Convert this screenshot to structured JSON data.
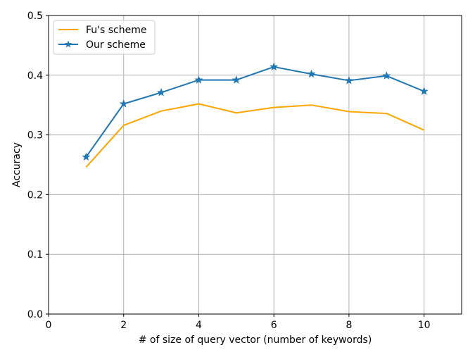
{
  "chart_data": {
    "type": "line",
    "xlabel": "# of size of query vector (number of keywords)",
    "ylabel": "Accuracy",
    "xlim": [
      0,
      11
    ],
    "ylim": [
      0,
      0.5
    ],
    "xticks": [
      0,
      2,
      4,
      6,
      8,
      10
    ],
    "yticks": [
      0.0,
      0.1,
      0.2,
      0.3,
      0.4,
      0.5
    ],
    "xtick_labels": [
      "0",
      "2",
      "4",
      "6",
      "8",
      "10"
    ],
    "ytick_labels": [
      "0.0",
      "0.1",
      "0.2",
      "0.3",
      "0.4",
      "0.5"
    ],
    "grid": true,
    "legend_position": "top-left",
    "x": [
      1,
      2,
      3,
      4,
      5,
      6,
      7,
      8,
      9,
      10
    ],
    "series": [
      {
        "name": "Fu's scheme",
        "color": "#ffa500",
        "marker": "none",
        "values": [
          0.246,
          0.316,
          0.34,
          0.352,
          0.337,
          0.346,
          0.35,
          0.339,
          0.336,
          0.308
        ]
      },
      {
        "name": "Our scheme",
        "color": "#1f77b4",
        "marker": "star",
        "values": [
          0.263,
          0.352,
          0.371,
          0.392,
          0.392,
          0.414,
          0.402,
          0.391,
          0.399,
          0.373
        ]
      }
    ]
  }
}
